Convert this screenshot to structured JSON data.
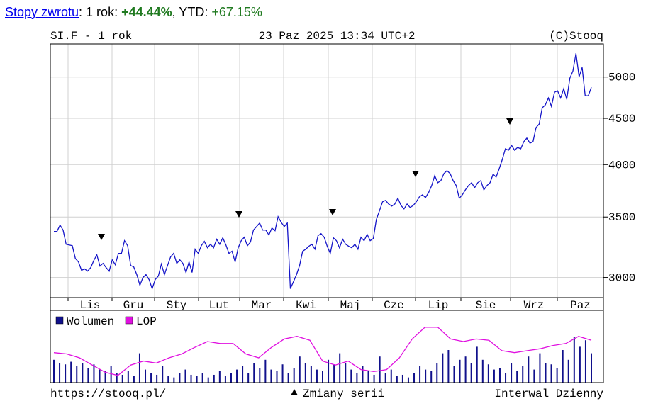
{
  "returns": {
    "link": "Stopy zwrotu",
    "period_label": ": 1 rok:",
    "period_value": "+44.44%",
    "ytd_label": ", YTD:",
    "ytd_value": "+67.15%"
  },
  "chart_data": [
    {
      "type": "line",
      "title": "SI.F - 1 rok",
      "subtitle": "23 Paz 2025 13:34 UTC+2",
      "credit": "(C)Stooq",
      "x_labels": [
        "Lis",
        "Gru",
        "Sty",
        "Lut",
        "Mar",
        "Kwi",
        "Maj",
        "Cze",
        "Lip",
        "Sie",
        "Wrz",
        "Paz"
      ],
      "color": "#1414c8",
      "log_scale": true,
      "grid": true,
      "ylim": [
        2850,
        5440
      ],
      "yticks": [
        3000,
        3500,
        4000,
        4500,
        5000
      ],
      "values": [
        3373,
        3373,
        3428,
        3385,
        3265,
        3259,
        3253,
        3149,
        3121,
        3055,
        3066,
        3049,
        3077,
        3133,
        3178,
        3088,
        3110,
        3077,
        3049,
        3138,
        3099,
        3190,
        3190,
        3295,
        3253,
        3093,
        3082,
        3022,
        2941,
        3000,
        3022,
        2984,
        2915,
        2984,
        3011,
        3104,
        3022,
        3093,
        3161,
        3190,
        3110,
        3138,
        3110,
        3038,
        3121,
        3038,
        3224,
        3190,
        3253,
        3289,
        3236,
        3265,
        3236,
        3307,
        3265,
        3319,
        3259,
        3190,
        3207,
        3121,
        3236,
        3295,
        3324,
        3253,
        3283,
        3385,
        3416,
        3446,
        3385,
        3385,
        3343,
        3403,
        3379,
        3503,
        3453,
        3416,
        3446,
        2915,
        2968,
        3022,
        3093,
        3207,
        3224,
        3248,
        3265,
        3224,
        3337,
        3355,
        3324,
        3248,
        3190,
        3319,
        3295,
        3236,
        3307,
        3265,
        3248,
        3236,
        3265,
        3224,
        3324,
        3295,
        3349,
        3295,
        3313,
        3478,
        3554,
        3638,
        3651,
        3618,
        3599,
        3618,
        3671,
        3605,
        3573,
        3618,
        3586,
        3605,
        3638,
        3684,
        3704,
        3677,
        3724,
        3792,
        3889,
        3819,
        3840,
        3910,
        3938,
        3910,
        3840,
        3792,
        3671,
        3704,
        3751,
        3792,
        3819,
        3771,
        3819,
        3840,
        3751,
        3792,
        3819,
        3903,
        3875,
        3959,
        4053,
        4164,
        4149,
        4202,
        4149,
        4179,
        4164,
        4240,
        4279,
        4225,
        4240,
        4396,
        4435,
        4623,
        4656,
        4741,
        4640,
        4810,
        4827,
        4741,
        4853,
        4724,
        4986,
        5077,
        5312,
        5004,
        5123,
        4767,
        4767,
        4871
      ]
    },
    {
      "type": "combo",
      "ylim": [
        0,
        100
      ],
      "series": [
        {
          "name": "Wolumen",
          "color": "#10108c",
          "kind": "bar",
          "values": [
            35,
            30,
            28,
            32,
            25,
            30,
            22,
            28,
            20,
            18,
            25,
            15,
            12,
            18,
            10,
            45,
            20,
            15,
            12,
            25,
            10,
            8,
            15,
            20,
            12,
            10,
            15,
            8,
            12,
            18,
            10,
            15,
            20,
            25,
            15,
            30,
            22,
            35,
            20,
            18,
            28,
            15,
            22,
            40,
            30,
            25,
            20,
            18,
            35,
            28,
            45,
            30,
            20,
            15,
            25,
            18,
            12,
            40,
            15,
            20,
            10,
            12,
            8,
            15,
            25,
            20,
            18,
            30,
            45,
            50,
            25,
            35,
            40,
            30,
            55,
            35,
            28,
            20,
            22,
            15,
            30,
            18,
            25,
            40,
            20,
            45,
            30,
            28,
            22,
            50,
            35,
            70,
            55,
            65,
            45
          ]
        },
        {
          "name": "LOP",
          "color": "#e010e0",
          "kind": "line",
          "values": [
            46,
            44,
            38,
            27,
            16,
            11,
            27,
            33,
            30,
            38,
            44,
            54,
            63,
            60,
            60,
            44,
            38,
            54,
            67,
            71,
            65,
            33,
            27,
            33,
            20,
            17,
            20,
            38,
            67,
            85,
            85,
            67,
            63,
            67,
            65,
            49,
            46,
            49,
            52,
            57,
            60,
            71,
            65
          ]
        }
      ]
    }
  ],
  "footer": {
    "url": "https://stooq.pl/",
    "note": "Zmiany serii",
    "interval": "Interwal Dzienny"
  }
}
